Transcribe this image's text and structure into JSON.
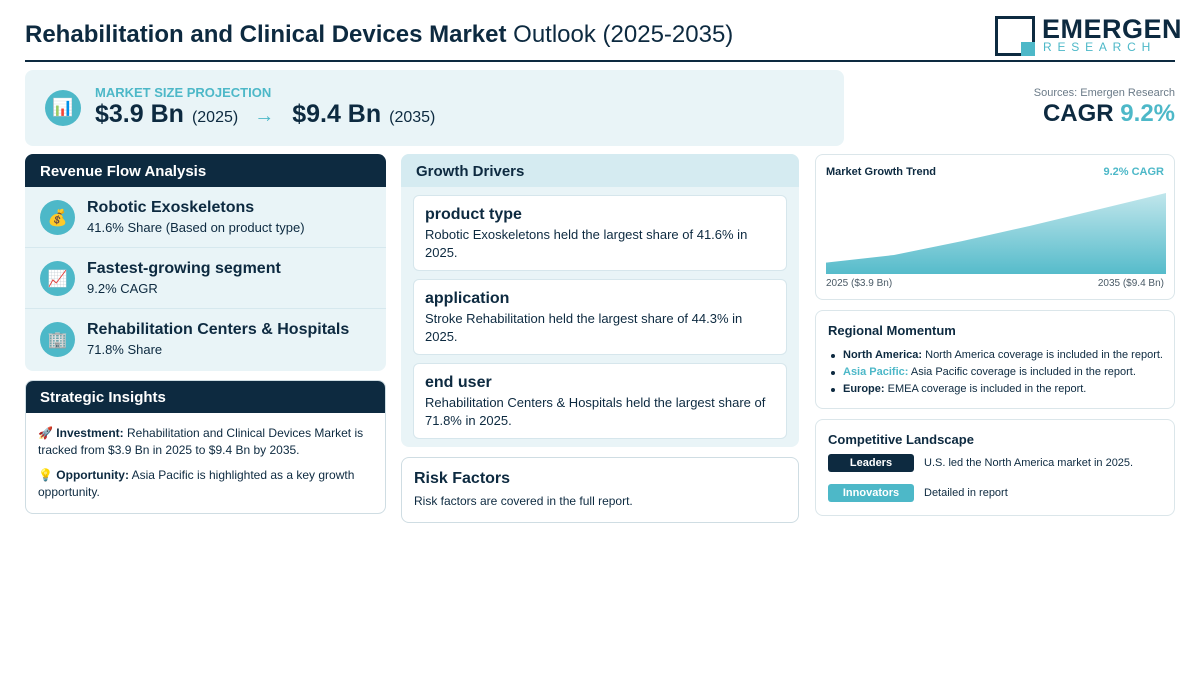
{
  "header": {
    "title_bold": "Rehabilitation and Clinical Devices Market",
    "title_light": "Outlook (2025-2035)",
    "logo_name": "EMERGEN",
    "logo_sub": "RESEARCH"
  },
  "projection": {
    "label": "MARKET SIZE PROJECTION",
    "start_value": "$3.9 Bn",
    "start_year": "(2025)",
    "arrow": "→",
    "end_value": "$9.4 Bn",
    "end_year": "(2035)",
    "icon": "bar-chart-icon"
  },
  "summary": {
    "sources": "Sources: Emergen Research",
    "cagr_label": "CAGR",
    "cagr_value": "9.2%"
  },
  "revenue": {
    "title": "Revenue Flow Analysis",
    "items": [
      {
        "icon": "money-bag-icon",
        "glyph": "💰",
        "title": "Robotic Exoskeletons",
        "sub": "41.6% Share (Based on product type)"
      },
      {
        "icon": "trend-up-icon",
        "glyph": "📈",
        "title": "Fastest-growing segment",
        "sub": "9.2% CAGR"
      },
      {
        "icon": "building-icon",
        "glyph": "🏢",
        "title": "Rehabilitation Centers & Hospitals",
        "sub": "71.8% Share"
      }
    ]
  },
  "insights": {
    "title": "Strategic Insights",
    "investment_icon": "🚀",
    "investment_label": "Investment:",
    "investment_text": "Rehabilitation and Clinical Devices Market is tracked from $3.9 Bn in 2025 to $9.4 Bn by 2035.",
    "opportunity_icon": "💡",
    "opportunity_label": "Opportunity:",
    "opportunity_text": "Asia Pacific is highlighted as a key growth opportunity."
  },
  "drivers": {
    "title": "Growth Drivers",
    "items": [
      {
        "title": "product type",
        "text": "Robotic Exoskeletons held the largest share of 41.6% in 2025."
      },
      {
        "title": "application",
        "text": "Stroke Rehabilitation held the largest share of 44.3% in 2025."
      },
      {
        "title": "end user",
        "text": "Rehabilitation Centers & Hospitals held the largest share of 71.8% in 2025."
      }
    ]
  },
  "risk": {
    "title": "Risk Factors",
    "text": "Risk factors are covered in the full report."
  },
  "trend": {
    "title": "Market Growth Trend",
    "cagr": "9.2% CAGR",
    "start_label": "2025 ($3.9 Bn)",
    "end_label": "2035 ($9.4 Bn)"
  },
  "chart_data": {
    "type": "area",
    "x": [
      2025,
      2027,
      2029,
      2031,
      2033,
      2035
    ],
    "values": [
      3.9,
      4.5,
      5.6,
      6.8,
      8.1,
      9.4
    ],
    "title": "Market Growth Trend",
    "xlabel": "",
    "ylabel": "",
    "ylim": [
      0,
      9.4
    ],
    "grid": false,
    "color": "#4db8c8"
  },
  "regional": {
    "title": "Regional Momentum",
    "items": [
      {
        "label": "North America:",
        "text": "North America coverage is included in the report."
      },
      {
        "label": "Asia Pacific:",
        "text": "Asia Pacific coverage is included in the report."
      },
      {
        "label": "Europe:",
        "text": "EMEA coverage is included in the report."
      }
    ]
  },
  "competitive": {
    "title": "Competitive Landscape",
    "rows": [
      {
        "badge": "Leaders",
        "color": "#0d2a40",
        "text": "U.S. led the North America market in 2025."
      },
      {
        "badge": "Innovators",
        "color": "#4db8c8",
        "text": "Detailed in report"
      }
    ]
  },
  "colors": {
    "navy": "#0d2a40",
    "teal": "#4db8c8",
    "panel": "#e9f4f7"
  }
}
